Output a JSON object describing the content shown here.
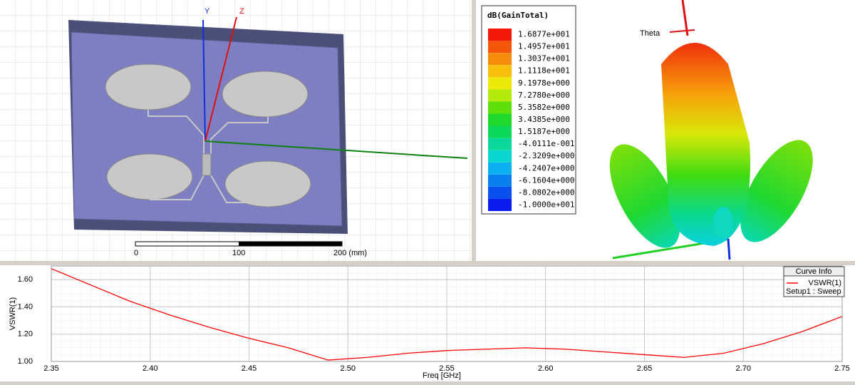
{
  "model_view": {
    "axis_labels": [
      "Y",
      "Z"
    ],
    "scale_labels": [
      "0",
      "100",
      "200 (mm)"
    ]
  },
  "pattern_view": {
    "axis_label": "Theta",
    "legend": {
      "title": "dB(GainTotal)",
      "labels": [
        "1.6877e+001",
        "1.4957e+001",
        "1.3037e+001",
        "1.1118e+001",
        "9.1978e+000",
        "7.2780e+000",
        "5.3582e+000",
        "3.4385e+000",
        "1.5187e+000",
        "-4.0111e-001",
        "-2.3209e+000",
        "-4.2407e+000",
        "-6.1604e+000",
        "-8.0802e+000",
        "-1.0000e+001"
      ],
      "colors": [
        "#f31a0a",
        "#f5560a",
        "#f78c0a",
        "#f7c00a",
        "#ece80a",
        "#b4ea0a",
        "#5ede0a",
        "#20d82a",
        "#0ad85a",
        "#0ad89a",
        "#0ad6d0",
        "#0ab0f0",
        "#0a80f0",
        "#0a50f0",
        "#0a1cf0"
      ]
    }
  },
  "chart_data": {
    "type": "line",
    "x_label": "Freq [GHz]",
    "y_label": "VSWR(1)",
    "legend_title": "Curve Info",
    "series_note": "Setup1 : Sweep",
    "x": [
      2.35,
      2.37,
      2.39,
      2.41,
      2.43,
      2.45,
      2.47,
      2.49,
      2.51,
      2.53,
      2.55,
      2.57,
      2.59,
      2.61,
      2.63,
      2.65,
      2.67,
      2.69,
      2.71,
      2.73,
      2.75
    ],
    "series": [
      {
        "name": "VSWR(1)",
        "color": "#ff0000",
        "values": [
          1.68,
          1.56,
          1.44,
          1.34,
          1.25,
          1.17,
          1.1,
          1.01,
          1.03,
          1.06,
          1.08,
          1.09,
          1.1,
          1.09,
          1.07,
          1.05,
          1.03,
          1.06,
          1.13,
          1.22,
          1.33
        ]
      }
    ],
    "xlim": [
      2.35,
      2.75
    ],
    "xticks": [
      2.35,
      {
        "value": 2.4,
        "label": "2.40"
      },
      2.45,
      {
        "value": 2.5,
        "label": "2.50"
      },
      2.55,
      {
        "value": 2.6,
        "label": "2.60"
      },
      2.65,
      {
        "value": 2.7,
        "label": "2.70"
      },
      2.75
    ],
    "ylim": [
      1.0,
      1.7
    ],
    "yticks": [
      {
        "value": 1.0,
        "label": "1.00"
      },
      {
        "value": 1.2,
        "label": "1.20"
      },
      {
        "value": 1.4,
        "label": "1.40"
      },
      {
        "value": 1.6,
        "label": "1.60"
      }
    ],
    "grid": true
  }
}
